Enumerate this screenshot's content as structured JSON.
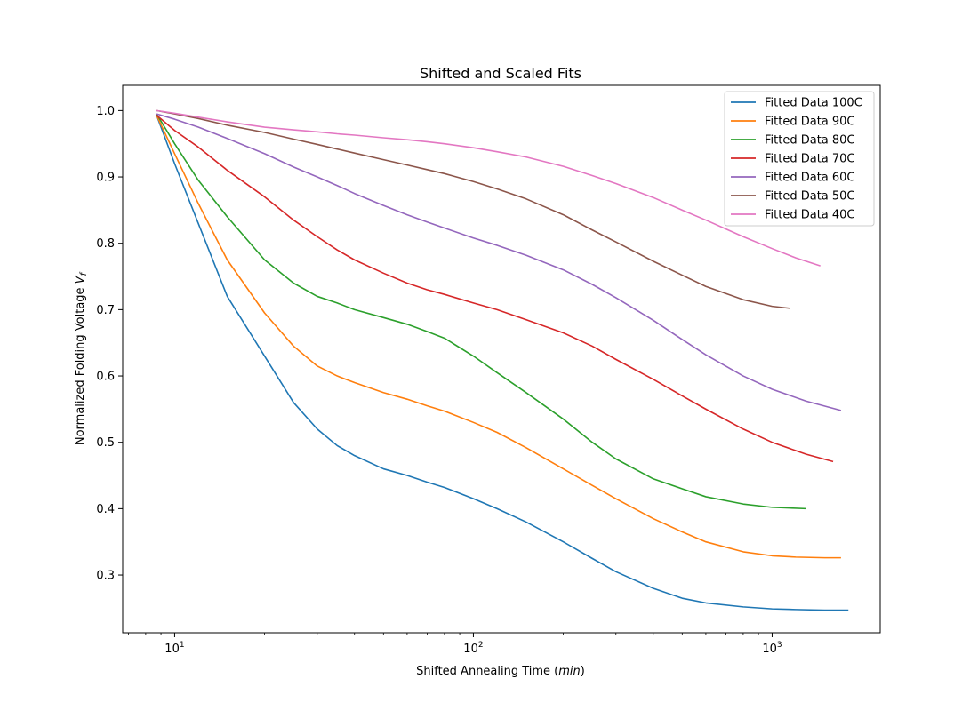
{
  "chart_data": {
    "type": "line",
    "title": "Shifted and Scaled Fits",
    "xlabel_prefix": "Shifted Annealing Time (",
    "xlabel_math": "min",
    "xlabel_suffix": ")",
    "ylabel_prefix": "Normalized Folding Voltage ",
    "ylabel_math": "V",
    "ylabel_sub": "f",
    "xscale": "log",
    "xlim": [
      6.7,
      2300
    ],
    "ylim": [
      0.213,
      1.038
    ],
    "x_major_ticks": [
      {
        "value": 10,
        "base": "10",
        "exp": "1"
      },
      {
        "value": 100,
        "base": "10",
        "exp": "2"
      },
      {
        "value": 1000,
        "base": "10",
        "exp": "3"
      }
    ],
    "y_ticks": [
      {
        "value": 0.3,
        "label": "0.3"
      },
      {
        "value": 0.4,
        "label": "0.4"
      },
      {
        "value": 0.5,
        "label": "0.5"
      },
      {
        "value": 0.6,
        "label": "0.6"
      },
      {
        "value": 0.7,
        "label": "0.7"
      },
      {
        "value": 0.8,
        "label": "0.8"
      },
      {
        "value": 0.9,
        "label": "0.9"
      },
      {
        "value": 1.0,
        "label": "1.0"
      }
    ],
    "legend_position": "upper right",
    "series": [
      {
        "name": "Fitted Data 100C",
        "color": "#1f77b4",
        "x": [
          8.7,
          10,
          12,
          15,
          20,
          25,
          30,
          35,
          40,
          50,
          60,
          70,
          80,
          100,
          120,
          150,
          200,
          250,
          300,
          400,
          500,
          600,
          800,
          1000,
          1200,
          1500,
          1800
        ],
        "y": [
          0.993,
          0.92,
          0.83,
          0.72,
          0.63,
          0.56,
          0.52,
          0.495,
          0.48,
          0.46,
          0.45,
          0.44,
          0.432,
          0.415,
          0.4,
          0.38,
          0.35,
          0.325,
          0.305,
          0.28,
          0.265,
          0.258,
          0.252,
          0.249,
          0.248,
          0.247,
          0.247
        ]
      },
      {
        "name": "Fitted Data 90C",
        "color": "#ff7f0e",
        "x": [
          8.7,
          10,
          12,
          15,
          20,
          25,
          30,
          35,
          40,
          50,
          60,
          70,
          80,
          100,
          120,
          150,
          200,
          250,
          300,
          400,
          500,
          600,
          800,
          1000,
          1200,
          1500,
          1700
        ],
        "y": [
          0.993,
          0.935,
          0.86,
          0.775,
          0.695,
          0.645,
          0.615,
          0.6,
          0.59,
          0.575,
          0.565,
          0.555,
          0.547,
          0.53,
          0.515,
          0.492,
          0.46,
          0.435,
          0.415,
          0.385,
          0.365,
          0.35,
          0.335,
          0.329,
          0.327,
          0.326,
          0.326
        ]
      },
      {
        "name": "Fitted Data 80C",
        "color": "#2ca02c",
        "x": [
          8.7,
          10,
          12,
          15,
          20,
          25,
          30,
          35,
          40,
          50,
          60,
          70,
          80,
          100,
          120,
          150,
          200,
          250,
          300,
          400,
          500,
          600,
          800,
          1000,
          1300
        ],
        "y": [
          0.995,
          0.95,
          0.895,
          0.84,
          0.775,
          0.74,
          0.72,
          0.71,
          0.7,
          0.688,
          0.678,
          0.667,
          0.657,
          0.63,
          0.605,
          0.575,
          0.535,
          0.5,
          0.475,
          0.445,
          0.43,
          0.418,
          0.407,
          0.402,
          0.4
        ]
      },
      {
        "name": "Fitted Data 70C",
        "color": "#d62728",
        "x": [
          8.7,
          10,
          12,
          15,
          20,
          25,
          30,
          35,
          40,
          50,
          60,
          70,
          80,
          100,
          120,
          150,
          200,
          250,
          300,
          400,
          500,
          600,
          800,
          1000,
          1300,
          1600
        ],
        "y": [
          0.993,
          0.97,
          0.945,
          0.91,
          0.87,
          0.835,
          0.81,
          0.79,
          0.775,
          0.755,
          0.74,
          0.73,
          0.723,
          0.71,
          0.7,
          0.685,
          0.665,
          0.645,
          0.625,
          0.595,
          0.57,
          0.55,
          0.52,
          0.5,
          0.482,
          0.471
        ]
      },
      {
        "name": "Fitted Data 60C",
        "color": "#9467bd",
        "x": [
          8.7,
          10,
          12,
          15,
          20,
          25,
          30,
          35,
          40,
          50,
          60,
          70,
          80,
          100,
          120,
          150,
          200,
          250,
          300,
          400,
          500,
          600,
          800,
          1000,
          1300,
          1700
        ],
        "y": [
          0.995,
          0.987,
          0.975,
          0.958,
          0.935,
          0.915,
          0.9,
          0.887,
          0.875,
          0.857,
          0.843,
          0.832,
          0.823,
          0.808,
          0.797,
          0.782,
          0.76,
          0.738,
          0.718,
          0.684,
          0.655,
          0.632,
          0.6,
          0.58,
          0.562,
          0.548
        ]
      },
      {
        "name": "Fitted Data 50C",
        "color": "#8c564b",
        "x": [
          8.7,
          10,
          12,
          15,
          20,
          25,
          30,
          35,
          40,
          50,
          60,
          70,
          80,
          100,
          120,
          150,
          200,
          250,
          300,
          400,
          500,
          600,
          800,
          1000,
          1150
        ],
        "y": [
          1.0,
          0.995,
          0.988,
          0.978,
          0.967,
          0.957,
          0.949,
          0.942,
          0.936,
          0.926,
          0.918,
          0.911,
          0.905,
          0.893,
          0.882,
          0.867,
          0.843,
          0.82,
          0.802,
          0.773,
          0.752,
          0.735,
          0.715,
          0.705,
          0.702
        ]
      },
      {
        "name": "Fitted Data 40C",
        "color": "#e377c2",
        "x": [
          8.7,
          10,
          12,
          15,
          20,
          25,
          30,
          35,
          40,
          50,
          60,
          70,
          80,
          100,
          120,
          150,
          200,
          250,
          300,
          400,
          500,
          600,
          800,
          1000,
          1200,
          1450
        ],
        "y": [
          1.0,
          0.996,
          0.99,
          0.983,
          0.975,
          0.971,
          0.968,
          0.965,
          0.963,
          0.959,
          0.956,
          0.953,
          0.95,
          0.944,
          0.938,
          0.93,
          0.916,
          0.902,
          0.89,
          0.869,
          0.85,
          0.835,
          0.81,
          0.792,
          0.778,
          0.766
        ]
      }
    ]
  }
}
